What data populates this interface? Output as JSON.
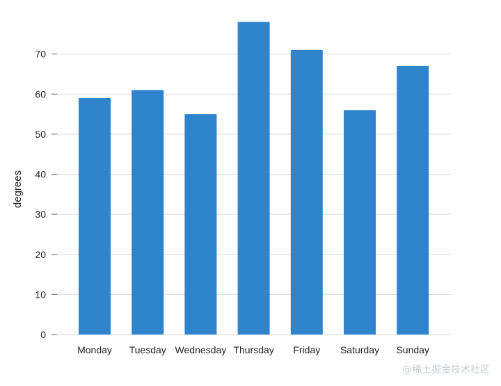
{
  "chart_data": {
    "type": "bar",
    "title": "",
    "xlabel": "",
    "ylabel": "degrees",
    "categories": [
      "Monday",
      "Tuesday",
      "Wednesday",
      "Thursday",
      "Friday",
      "Saturday",
      "Sunday"
    ],
    "values": [
      59,
      61,
      55,
      78,
      71,
      56,
      67
    ],
    "ylim": [
      0,
      80
    ],
    "yticks": [
      0,
      10,
      20,
      30,
      40,
      50,
      60,
      70
    ],
    "grid": true,
    "legend": "none",
    "colors": {
      "bar": "#2f84cd",
      "grid": "#d9d9d9",
      "axis": "#666666"
    }
  },
  "watermark": {
    "text": "@稀土掘金技术社区"
  }
}
